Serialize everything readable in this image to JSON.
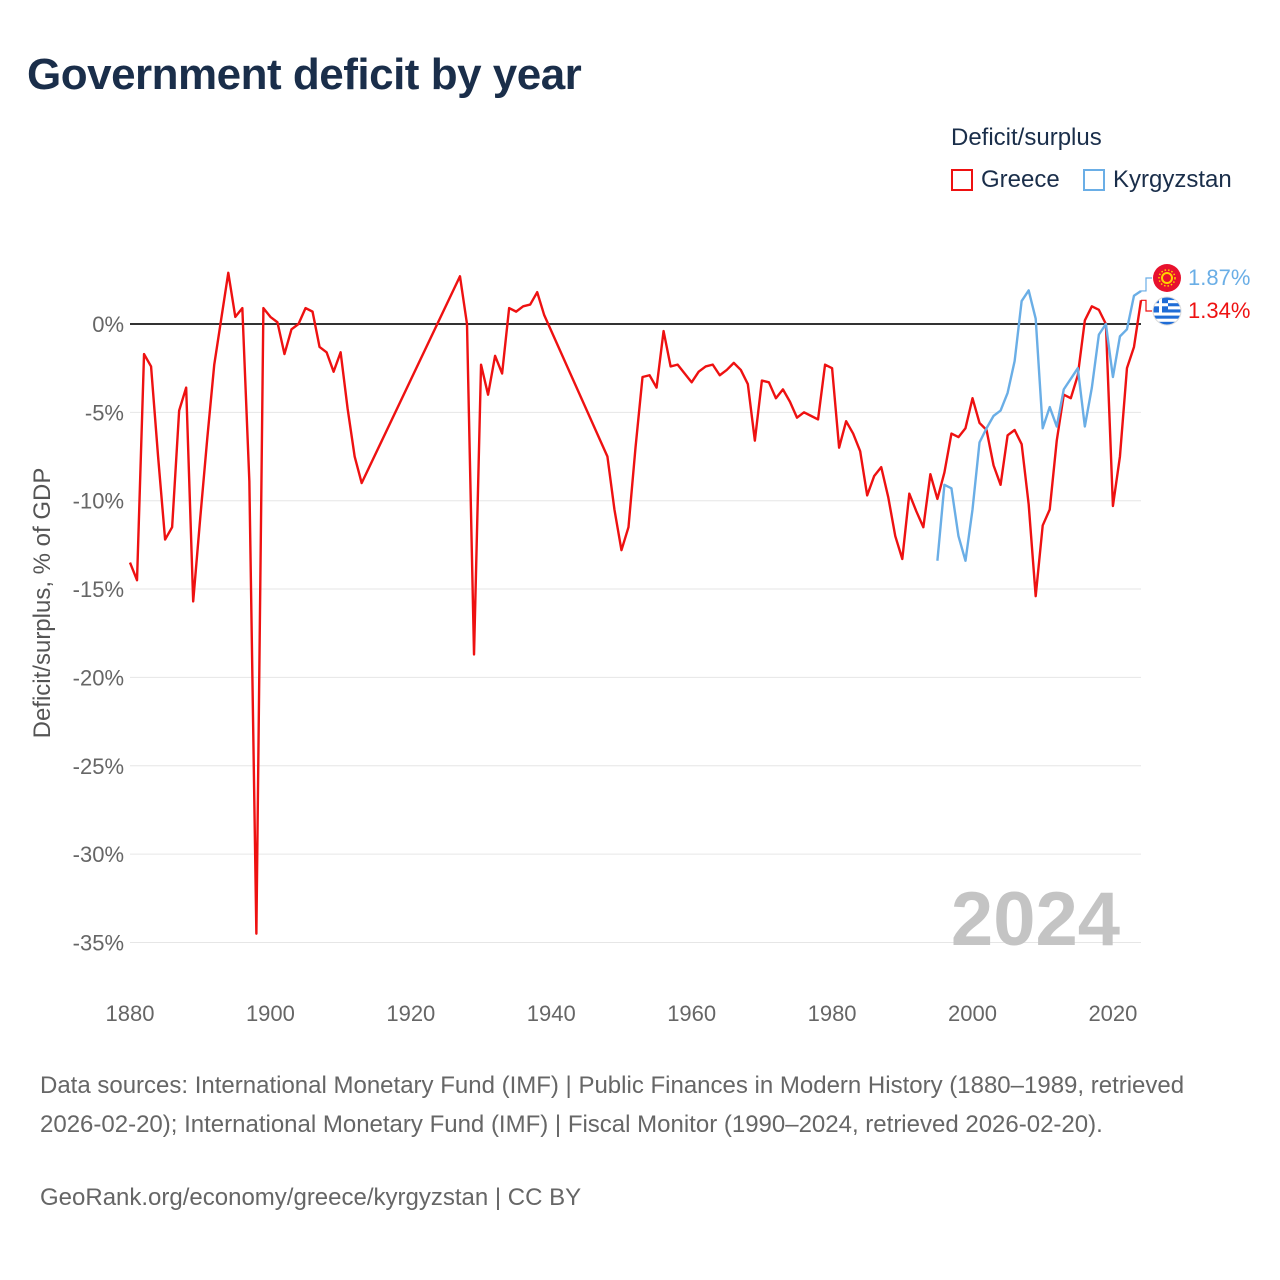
{
  "title": "Government deficit by year",
  "legend": {
    "title": "Deficit/surplus",
    "items": [
      {
        "label": "Greece",
        "color": "#ee1111"
      },
      {
        "label": "Kyrgyzstan",
        "color": "#6aaee6"
      }
    ]
  },
  "current_year_label": "2024",
  "source_text": "Data sources: International Monetary Fund (IMF) | Public Finances in Modern History (1880–1989, retrieved 2026-02-20); International Monetary Fund (IMF) | Fiscal Monitor (1990–2024, retrieved 2026-02-20).",
  "credit_text": "GeoRank.org/economy/greece/kyrgyzstan | CC BY",
  "chart_data": {
    "type": "line",
    "title": "Government deficit by year",
    "xlabel": "",
    "ylabel": "Deficit/surplus, % of GDP",
    "xlim": [
      1880,
      2024
    ],
    "ylim": [
      -35,
      2
    ],
    "x_ticks": [
      1880,
      1900,
      1920,
      1940,
      1960,
      1980,
      2000,
      2020
    ],
    "y_ticks": [
      0,
      -5,
      -10,
      -15,
      -20,
      -25,
      -30,
      -35
    ],
    "y_tick_labels": [
      "0%",
      "-5%",
      "-10%",
      "-15%",
      "-20%",
      "-25%",
      "-30%",
      "-35%"
    ],
    "end_labels": [
      {
        "series": "Kyrgyzstan",
        "text": "1.87%"
      },
      {
        "series": "Greece",
        "text": "1.34%"
      }
    ],
    "series": [
      {
        "name": "Greece",
        "color": "#ee1111",
        "gaps": [
          [
            1912,
            1927
          ],
          [
            1938,
            1948
          ]
        ],
        "points": [
          [
            1880,
            -13.5
          ],
          [
            1881,
            -14.5
          ],
          [
            1882,
            -1.7
          ],
          [
            1883,
            -2.4
          ],
          [
            1884,
            -7.5
          ],
          [
            1885,
            -12.2
          ],
          [
            1886,
            -11.5
          ],
          [
            1887,
            -4.9
          ],
          [
            1888,
            -3.6
          ],
          [
            1889,
            -15.7
          ],
          [
            1890,
            -11.0
          ],
          [
            1891,
            -6.5
          ],
          [
            1892,
            -2.3
          ],
          [
            1893,
            0.3
          ],
          [
            1894,
            2.9
          ],
          [
            1895,
            0.4
          ],
          [
            1896,
            0.9
          ],
          [
            1897,
            -8.9
          ],
          [
            1898,
            -34.5
          ],
          [
            1899,
            0.9
          ],
          [
            1900,
            0.4
          ],
          [
            1901,
            0.1
          ],
          [
            1902,
            -1.7
          ],
          [
            1903,
            -0.3
          ],
          [
            1904,
            0.0
          ],
          [
            1905,
            0.9
          ],
          [
            1906,
            0.7
          ],
          [
            1907,
            -1.3
          ],
          [
            1908,
            -1.6
          ],
          [
            1909,
            -2.7
          ],
          [
            1910,
            -1.6
          ],
          [
            1911,
            -4.8
          ],
          [
            1912,
            -7.5
          ],
          [
            1913,
            -9.0
          ],
          [
            1927,
            2.7
          ],
          [
            1928,
            0.0
          ],
          [
            1929,
            -18.7
          ],
          [
            1930,
            -2.3
          ],
          [
            1931,
            -4.0
          ],
          [
            1932,
            -1.8
          ],
          [
            1933,
            -2.8
          ],
          [
            1934,
            0.9
          ],
          [
            1935,
            0.7
          ],
          [
            1936,
            1.0
          ],
          [
            1937,
            1.1
          ],
          [
            1938,
            1.8
          ],
          [
            1939,
            0.5
          ],
          [
            1948,
            -7.5
          ],
          [
            1949,
            -10.5
          ],
          [
            1950,
            -12.8
          ],
          [
            1951,
            -11.5
          ],
          [
            1952,
            -7.0
          ],
          [
            1953,
            -3.0
          ],
          [
            1954,
            -2.9
          ],
          [
            1955,
            -3.6
          ],
          [
            1956,
            -0.4
          ],
          [
            1957,
            -2.4
          ],
          [
            1958,
            -2.3
          ],
          [
            1959,
            -2.8
          ],
          [
            1960,
            -3.3
          ],
          [
            1961,
            -2.7
          ],
          [
            1962,
            -2.4
          ],
          [
            1963,
            -2.3
          ],
          [
            1964,
            -2.9
          ],
          [
            1965,
            -2.6
          ],
          [
            1966,
            -2.2
          ],
          [
            1967,
            -2.6
          ],
          [
            1968,
            -3.4
          ],
          [
            1969,
            -6.6
          ],
          [
            1970,
            -3.2
          ],
          [
            1971,
            -3.3
          ],
          [
            1972,
            -4.2
          ],
          [
            1973,
            -3.7
          ],
          [
            1974,
            -4.4
          ],
          [
            1975,
            -5.3
          ],
          [
            1976,
            -5.0
          ],
          [
            1977,
            -5.2
          ],
          [
            1978,
            -5.4
          ],
          [
            1979,
            -2.3
          ],
          [
            1980,
            -2.5
          ],
          [
            1981,
            -7.0
          ],
          [
            1982,
            -5.5
          ],
          [
            1983,
            -6.2
          ],
          [
            1984,
            -7.2
          ],
          [
            1985,
            -9.7
          ],
          [
            1986,
            -8.6
          ],
          [
            1987,
            -8.1
          ],
          [
            1988,
            -9.8
          ],
          [
            1989,
            -12.0
          ],
          [
            1990,
            -13.3
          ],
          [
            1991,
            -9.6
          ],
          [
            1992,
            -10.6
          ],
          [
            1993,
            -11.5
          ],
          [
            1994,
            -8.5
          ],
          [
            1995,
            -9.9
          ],
          [
            1996,
            -8.4
          ],
          [
            1997,
            -6.2
          ],
          [
            1998,
            -6.4
          ],
          [
            1999,
            -5.9
          ],
          [
            2000,
            -4.2
          ],
          [
            2001,
            -5.6
          ],
          [
            2002,
            -6.0
          ],
          [
            2003,
            -8.0
          ],
          [
            2004,
            -9.1
          ],
          [
            2005,
            -6.3
          ],
          [
            2006,
            -6.0
          ],
          [
            2007,
            -6.8
          ],
          [
            2008,
            -10.2
          ],
          [
            2009,
            -15.4
          ],
          [
            2010,
            -11.4
          ],
          [
            2011,
            -10.5
          ],
          [
            2012,
            -6.6
          ],
          [
            2013,
            -4.0
          ],
          [
            2014,
            -4.2
          ],
          [
            2015,
            -2.9
          ],
          [
            2016,
            0.2
          ],
          [
            2017,
            1.0
          ],
          [
            2018,
            0.8
          ],
          [
            2019,
            0.0
          ],
          [
            2020,
            -10.3
          ],
          [
            2021,
            -7.5
          ],
          [
            2022,
            -2.5
          ],
          [
            2023,
            -1.3
          ],
          [
            2024,
            1.34
          ]
        ]
      },
      {
        "name": "Kyrgyzstan",
        "color": "#6aaee6",
        "gaps": [],
        "points": [
          [
            1995,
            -13.4
          ],
          [
            1996,
            -9.1
          ],
          [
            1997,
            -9.3
          ],
          [
            1998,
            -12.0
          ],
          [
            1999,
            -13.4
          ],
          [
            2000,
            -10.5
          ],
          [
            2001,
            -6.7
          ],
          [
            2002,
            -5.9
          ],
          [
            2003,
            -5.2
          ],
          [
            2004,
            -4.9
          ],
          [
            2005,
            -3.9
          ],
          [
            2006,
            -2.1
          ],
          [
            2007,
            1.3
          ],
          [
            2008,
            1.9
          ],
          [
            2009,
            0.3
          ],
          [
            2010,
            -5.9
          ],
          [
            2011,
            -4.7
          ],
          [
            2012,
            -5.8
          ],
          [
            2013,
            -3.7
          ],
          [
            2014,
            -3.1
          ],
          [
            2015,
            -2.5
          ],
          [
            2016,
            -5.8
          ],
          [
            2017,
            -3.6
          ],
          [
            2018,
            -0.6
          ],
          [
            2019,
            0.0
          ],
          [
            2020,
            -3.0
          ],
          [
            2021,
            -0.7
          ],
          [
            2022,
            -0.3
          ],
          [
            2023,
            1.6
          ],
          [
            2024,
            1.87
          ]
        ]
      }
    ]
  }
}
